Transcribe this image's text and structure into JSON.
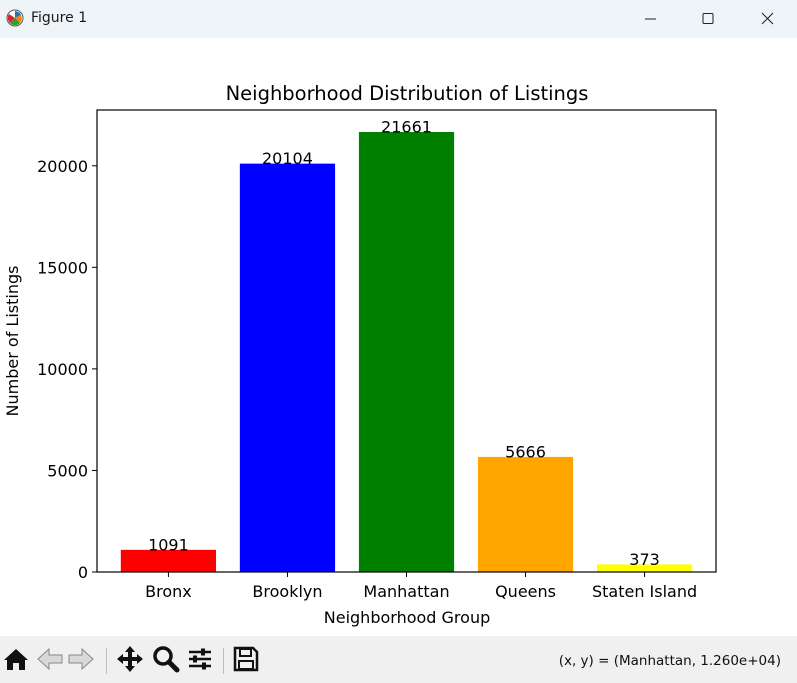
{
  "window": {
    "title": "Figure 1",
    "icon": "matplotlib-logo-icon",
    "controls": [
      "minimize-icon",
      "maximize-icon",
      "close-icon"
    ]
  },
  "chart_data": {
    "type": "bar",
    "title": "Neighborhood Distribution of Listings",
    "xlabel": "Neighborhood Group",
    "ylabel": "Number of Listings",
    "categories": [
      "Bronx",
      "Brooklyn",
      "Manhattan",
      "Queens",
      "Staten Island"
    ],
    "values": [
      1091,
      20104,
      21661,
      5666,
      373
    ],
    "data_labels": [
      "1091",
      "20104",
      "21661",
      "5666",
      "373"
    ],
    "colors": [
      "#ff0000",
      "#0000ff",
      "#008000",
      "#ffa500",
      "#ffff00"
    ],
    "ylim": [
      0,
      22745
    ],
    "yticks": [
      0,
      5000,
      10000,
      15000,
      20000
    ],
    "ytick_labels": [
      "0",
      "5000",
      "10000",
      "15000",
      "20000"
    ],
    "grid": false,
    "legend": false
  },
  "toolbar": {
    "buttons": [
      "home-icon",
      "back-icon",
      "forward-icon",
      "pan-icon",
      "zoom-icon",
      "configure-subplots-icon",
      "save-icon"
    ],
    "coords_text": "(x, y) = (Manhattan, 1.260e+04)"
  }
}
